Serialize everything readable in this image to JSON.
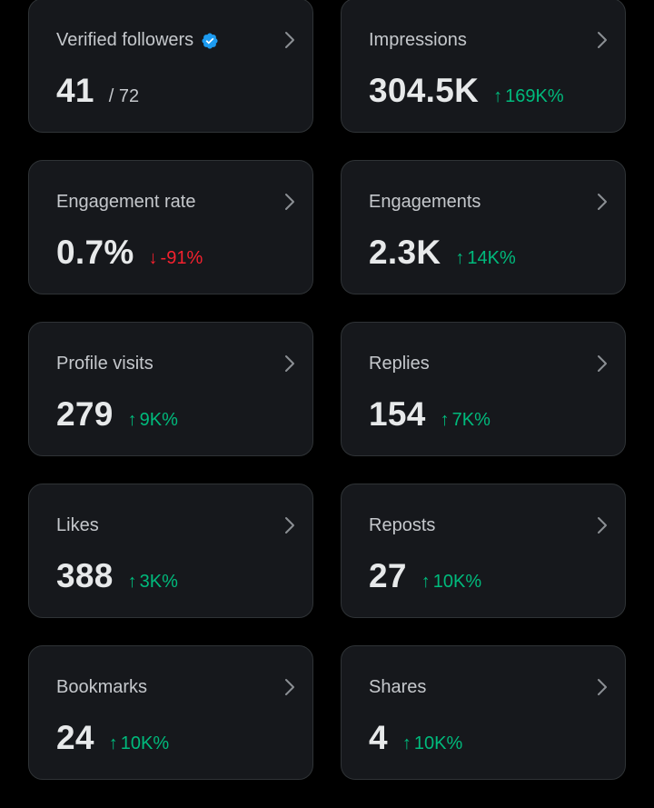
{
  "colors": {
    "background": "#000000",
    "card": "#16181c",
    "card_border": "#2f3336",
    "positive": "#00ba7c",
    "negative": "#f4212e",
    "verified": "#1d9bf0"
  },
  "metrics": [
    {
      "title": "Verified followers",
      "value": "41",
      "sub": "/ 72",
      "verified": true,
      "change": "",
      "direction": ""
    },
    {
      "title": "Impressions",
      "value": "304.5K",
      "sub": "",
      "verified": false,
      "change": "169K%",
      "direction": "up"
    },
    {
      "title": "Engagement rate",
      "value": "0.7%",
      "sub": "",
      "verified": false,
      "change": "-91%",
      "direction": "down"
    },
    {
      "title": "Engagements",
      "value": "2.3K",
      "sub": "",
      "verified": false,
      "change": "14K%",
      "direction": "up"
    },
    {
      "title": "Profile visits",
      "value": "279",
      "sub": "",
      "verified": false,
      "change": "9K%",
      "direction": "up"
    },
    {
      "title": "Replies",
      "value": "154",
      "sub": "",
      "verified": false,
      "change": "7K%",
      "direction": "up"
    },
    {
      "title": "Likes",
      "value": "388",
      "sub": "",
      "verified": false,
      "change": "3K%",
      "direction": "up"
    },
    {
      "title": "Reposts",
      "value": "27",
      "sub": "",
      "verified": false,
      "change": "10K%",
      "direction": "up"
    },
    {
      "title": "Bookmarks",
      "value": "24",
      "sub": "",
      "verified": false,
      "change": "10K%",
      "direction": "up"
    },
    {
      "title": "Shares",
      "value": "4",
      "sub": "",
      "verified": false,
      "change": "10K%",
      "direction": "up"
    }
  ],
  "icons": {
    "arrow_up": "↑",
    "arrow_down": "↓",
    "chevron": "chevron-right-icon",
    "verified": "verified-badge-icon"
  }
}
